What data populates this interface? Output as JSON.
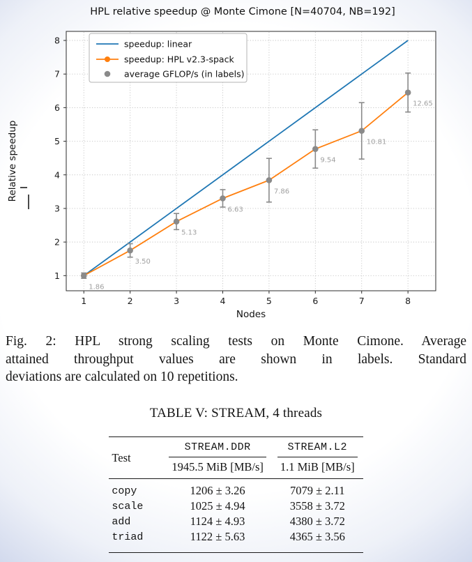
{
  "figure": {
    "caption_lines": [
      "Fig. 2: HPL strong scaling tests on Monte Cimone. Average",
      "attained throughput values are shown in labels. Standard",
      "deviations are calculated on 10 repetitions."
    ]
  },
  "chart_data": {
    "type": "line",
    "title": "HPL relative speedup @ Monte Cimone [N=40704, NB=192]",
    "xlabel": "Nodes",
    "ylabel": "Relative speedup",
    "x": [
      1,
      2,
      3,
      4,
      5,
      6,
      7,
      8
    ],
    "xticks": [
      1,
      2,
      3,
      4,
      5,
      6,
      7,
      8
    ],
    "yticks": [
      1,
      2,
      3,
      4,
      5,
      6,
      7,
      8
    ],
    "xlim": [
      0.62,
      8.6
    ],
    "ylim": [
      0.55,
      8.27
    ],
    "grid": true,
    "legend_position": "upper left",
    "series": [
      {
        "name": "speedup: linear",
        "type": "line",
        "color": "#1f77b4",
        "values": [
          1,
          2,
          3,
          4,
          5,
          6,
          7,
          8
        ]
      },
      {
        "name": "speedup: HPL v2.3-spack",
        "type": "line+marker",
        "color": "#ff7f0e",
        "values": [
          1.0,
          1.75,
          2.61,
          3.3,
          3.84,
          4.77,
          5.31,
          6.45
        ]
      },
      {
        "name": "average GFLOP/s (in labels)",
        "type": "scatter+errorbar",
        "color": "#8a8a8a",
        "label_color": "#a0a0a0",
        "values": [
          1.0,
          1.75,
          2.61,
          3.3,
          3.84,
          4.77,
          5.31,
          6.45
        ],
        "errors": [
          0.08,
          0.2,
          0.24,
          0.26,
          0.65,
          0.57,
          0.84,
          0.58
        ],
        "labels": [
          "1.86",
          "3.50",
          "5.13",
          "6.63",
          "7.86",
          "9.54",
          "10.81",
          "12.65"
        ]
      }
    ]
  },
  "table": {
    "title": "TABLE V: STREAM, 4 threads",
    "corner_label": "Test",
    "columns": [
      {
        "name": "STREAM.DDR",
        "sub": "1945.5 MiB [MB/s]"
      },
      {
        "name": "STREAM.L2",
        "sub": "1.1 MiB [MB/s]"
      }
    ],
    "rows": [
      {
        "test": "copy",
        "ddr": "1206 ± 3.26",
        "l2": "7079 ± 2.11"
      },
      {
        "test": "scale",
        "ddr": "1025 ± 4.94",
        "l2": "3558 ± 3.72"
      },
      {
        "test": "add",
        "ddr": "1124 ± 4.93",
        "l2": "4380 ± 3.72"
      },
      {
        "test": "triad",
        "ddr": "1122 ± 5.63",
        "l2": "4365 ± 3.56"
      }
    ]
  }
}
